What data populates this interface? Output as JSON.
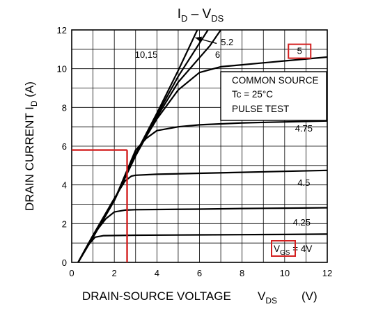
{
  "chart_data": {
    "type": "line",
    "title": {
      "main": "I",
      "sub": "D",
      "sep": " – V",
      "sub2": "DS"
    },
    "xlabel": {
      "main": "DRAIN-SOURCE VOLTAGE",
      "sym": "V",
      "sub": "DS",
      "unit": "(V)"
    },
    "ylabel": {
      "main": "DRAIN CURRENT",
      "sym": "I",
      "sub": "D",
      "unit": "(A)"
    },
    "xlim": [
      0,
      12
    ],
    "ylim": [
      0,
      12
    ],
    "x_ticks": [
      0,
      2,
      4,
      6,
      8,
      10,
      12
    ],
    "y_ticks": [
      0,
      2,
      4,
      6,
      8,
      10,
      12
    ],
    "grid": "on",
    "conditions_box": {
      "line1": "COMMON SOURCE",
      "line2": "Tc = 25°C",
      "line3": "PULSE TEST"
    },
    "vgs_label": {
      "sym": "V",
      "sub": "GS",
      "value": " = 4V"
    },
    "series": [
      {
        "name": "10,15",
        "points": [
          [
            0.3,
            0
          ],
          [
            1,
            1.3
          ],
          [
            2,
            3.2
          ],
          [
            3,
            5.6
          ],
          [
            4,
            7.7
          ],
          [
            5,
            9.9
          ],
          [
            5.9,
            12
          ]
        ]
      },
      {
        "name": "6",
        "points": [
          [
            0.3,
            0
          ],
          [
            1,
            1.3
          ],
          [
            2,
            3.2
          ],
          [
            3,
            5.6
          ],
          [
            4,
            7.6
          ],
          [
            5,
            9.6
          ],
          [
            6.4,
            12
          ]
        ]
      },
      {
        "name": "5.2",
        "points": [
          [
            0.3,
            0
          ],
          [
            1,
            1.3
          ],
          [
            2,
            3.2
          ],
          [
            3,
            5.5
          ],
          [
            4,
            7.5
          ],
          [
            5,
            9.3
          ],
          [
            6.5,
            11.2
          ],
          [
            7,
            12
          ]
        ]
      },
      {
        "name": "5",
        "points": [
          [
            0.3,
            0
          ],
          [
            1,
            1.3
          ],
          [
            2,
            3.2
          ],
          [
            3,
            5.6
          ],
          [
            4,
            7.4
          ],
          [
            5,
            8.9
          ],
          [
            6,
            9.8
          ],
          [
            7,
            10.1
          ],
          [
            8,
            10.2
          ],
          [
            10,
            10.4
          ],
          [
            12,
            10.6
          ]
        ]
      },
      {
        "name": "4.75",
        "points": [
          [
            0.3,
            0
          ],
          [
            1,
            1.3
          ],
          [
            2,
            3.2
          ],
          [
            3,
            5.8
          ],
          [
            3.5,
            6.4
          ],
          [
            4,
            6.8
          ],
          [
            5,
            7.0
          ],
          [
            6,
            7.1
          ],
          [
            8,
            7.2
          ],
          [
            10,
            7.25
          ],
          [
            12,
            7.3
          ]
        ]
      },
      {
        "name": "4.5",
        "points": [
          [
            0.3,
            0
          ],
          [
            1,
            1.4
          ],
          [
            2,
            3.3
          ],
          [
            2.5,
            4.2
          ],
          [
            2.8,
            4.45
          ],
          [
            3,
            4.5
          ],
          [
            4,
            4.55
          ],
          [
            6,
            4.6
          ],
          [
            8,
            4.65
          ],
          [
            10,
            4.7
          ],
          [
            12,
            4.75
          ]
        ]
      },
      {
        "name": "4.25",
        "points": [
          [
            0.3,
            0
          ],
          [
            1,
            1.4
          ],
          [
            1.6,
            2.25
          ],
          [
            2,
            2.6
          ],
          [
            2.5,
            2.7
          ],
          [
            3,
            2.72
          ],
          [
            6,
            2.75
          ],
          [
            8,
            2.78
          ],
          [
            10,
            2.8
          ],
          [
            12,
            2.82
          ]
        ]
      },
      {
        "name": "VGS = 4V",
        "points": [
          [
            0.3,
            0
          ],
          [
            0.7,
            0.8
          ],
          [
            1.1,
            1.3
          ],
          [
            1.5,
            1.38
          ],
          [
            3,
            1.4
          ],
          [
            6,
            1.42
          ],
          [
            8,
            1.43
          ],
          [
            10,
            1.44
          ],
          [
            12,
            1.46
          ]
        ]
      }
    ],
    "series_labels": [
      {
        "text": "10,15",
        "x": 3.5,
        "y": 10.7
      },
      {
        "text": "6",
        "x": 6.85,
        "y": 10.7
      },
      {
        "text": "5.2",
        "x": 7.3,
        "y": 11.35
      },
      {
        "text": "5",
        "x": 10.7,
        "y": 10.9
      },
      {
        "text": "4.75",
        "x": 10.9,
        "y": 6.9
      },
      {
        "text": "4.5",
        "x": 10.9,
        "y": 4.1
      },
      {
        "text": "4.25",
        "x": 10.8,
        "y": 2.05
      }
    ],
    "annotation_arrow": {
      "from": [
        7.0,
        11.3
      ],
      "to": [
        5.8,
        11.6
      ]
    },
    "highlight_point": {
      "x": 2.6,
      "y": 5.8
    },
    "highlight_color": "#d31f1f"
  }
}
